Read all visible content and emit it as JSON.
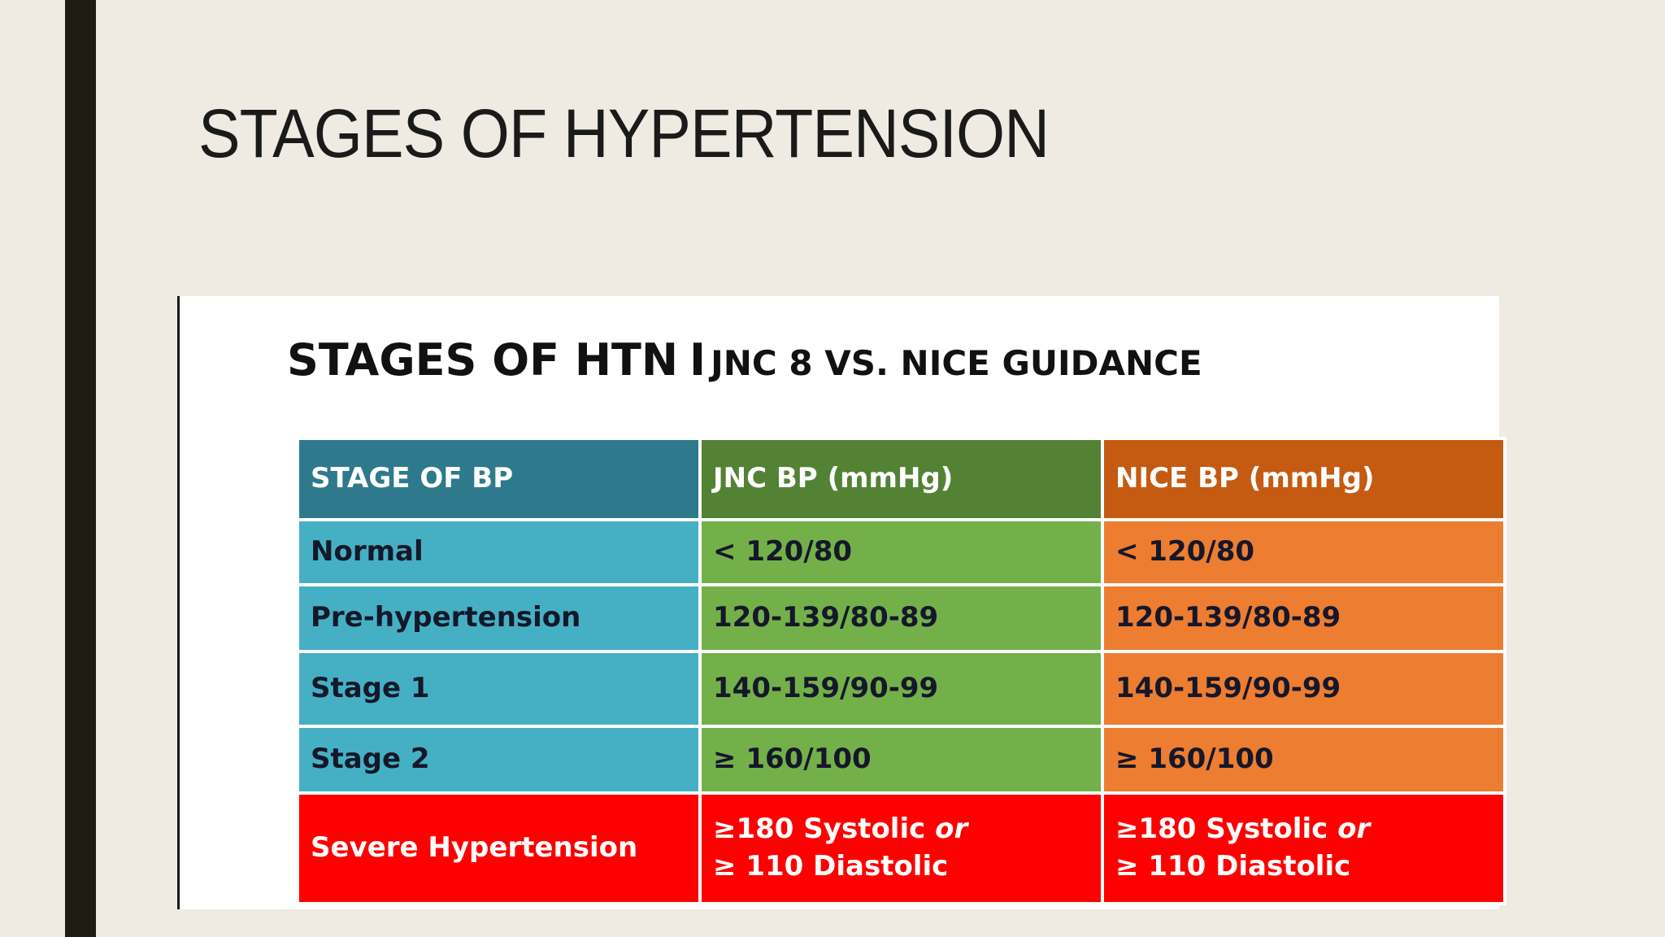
{
  "slide": {
    "title": "STAGES OF HYPERTENSION"
  },
  "figure": {
    "title_main": "STAGES OF HTN",
    "title_divider": "I",
    "title_sub": "JNC 8 VS. NICE GUIDANCE"
  },
  "table": {
    "headers": [
      "STAGE OF BP",
      "JNC BP (mmHg)",
      "NICE BP (mmHg)"
    ],
    "rows": [
      {
        "stage": "Normal",
        "jnc": "< 120/80",
        "nice": "< 120/80"
      },
      {
        "stage": "Pre-hypertension",
        "jnc": "120-139/80-89",
        "nice": "120-139/80-89"
      },
      {
        "stage": "Stage 1",
        "jnc": "140-159/90-99",
        "nice": "140-159/90-99"
      },
      {
        "stage": "Stage 2",
        "jnc": "≥ 160/100",
        "nice": "≥ 160/100"
      }
    ],
    "severe": {
      "stage": "Severe Hypertension",
      "jnc": {
        "line1": "≥180 Systolic",
        "or": "or",
        "line2": "≥ 110 Diastolic"
      },
      "nice": {
        "line1": "≥180 Systolic",
        "or": "or",
        "line2": "≥ 110 Diastolic"
      }
    }
  },
  "colors": {
    "background": "#efebe3",
    "side_bar": "#1c1c12",
    "header_stage": "#2e7a8c",
    "header_jnc": "#548235",
    "header_nice": "#c55a11",
    "cell_stage": "#45b0c3",
    "cell_jnc": "#74b04a",
    "cell_nice": "#ed7d31",
    "severe": "#ff0000"
  }
}
